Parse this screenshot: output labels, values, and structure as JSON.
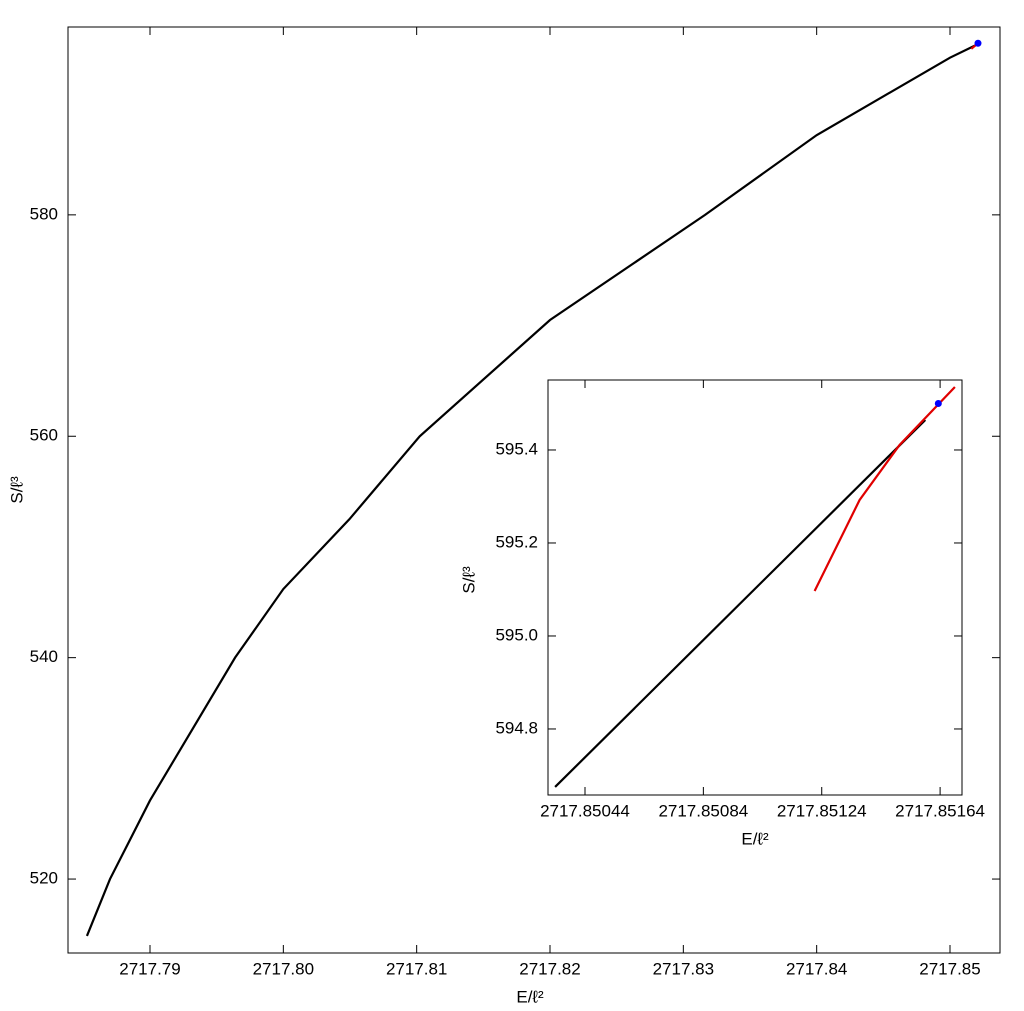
{
  "chart_data": [
    {
      "type": "line",
      "xlabel": "E/ℓ²",
      "ylabel": "S/ℓ³",
      "xlim": [
        2717.78385,
        2717.85375
      ],
      "ylim": [
        513.32,
        596.97
      ],
      "xticks": [
        2717.79,
        {
          "value": 2717.8,
          "label": "2717.80"
        },
        2717.81,
        2717.82,
        2717.83,
        2717.84,
        2717.85
      ],
      "yticks": [
        520,
        540,
        560,
        580
      ],
      "series": [
        {
          "style": "line",
          "color": "#000000",
          "x": [
            2717.78527,
            2717.787,
            2717.79,
            2717.79638,
            2717.8,
            2717.80495,
            2717.81023,
            2717.82,
            2717.83163,
            2717.84,
            2717.85,
            2717.85188
          ],
          "values": [
            514.86,
            520,
            527.1,
            540,
            546.2,
            552.5,
            560,
            570.5,
            580,
            587.2,
            594.2,
            595.3
          ]
        },
        {
          "style": "line",
          "color": "#e00000",
          "x": [
            2717.8516,
            2717.8521
          ],
          "values": [
            595.0,
            595.5
          ]
        },
        {
          "style": "point",
          "color": "#0000ff",
          "x": [
            2717.8521
          ],
          "values": [
            595.5
          ]
        }
      ]
    },
    {
      "type": "line",
      "xlabel": "E/ℓ²",
      "ylabel": "S/ℓ³",
      "xlim": [
        2717.850315,
        2717.851714
      ],
      "ylim": [
        594.658,
        595.5505
      ],
      "xticks": [
        2717.85044,
        2717.85084,
        2717.85124,
        2717.85164
      ],
      "yticks": [
        594.8,
        {
          "value": 595.0,
          "label": "595.0"
        },
        595.2,
        595.4
      ],
      "series": [
        {
          "style": "line",
          "color": "#000000",
          "x": [
            2717.850339,
            2717.85159
          ],
          "values": [
            594.6753,
            595.4645
          ]
        },
        {
          "style": "line",
          "color": "#e00000",
          "x": [
            2717.851216,
            2717.851368,
            2717.851503,
            2717.85169
          ],
          "values": [
            595.0968,
            595.2925,
            595.4108,
            595.5355
          ]
        },
        {
          "style": "point",
          "color": "#0000ff",
          "x": [
            2717.851634
          ],
          "values": [
            595.5
          ]
        }
      ]
    }
  ]
}
